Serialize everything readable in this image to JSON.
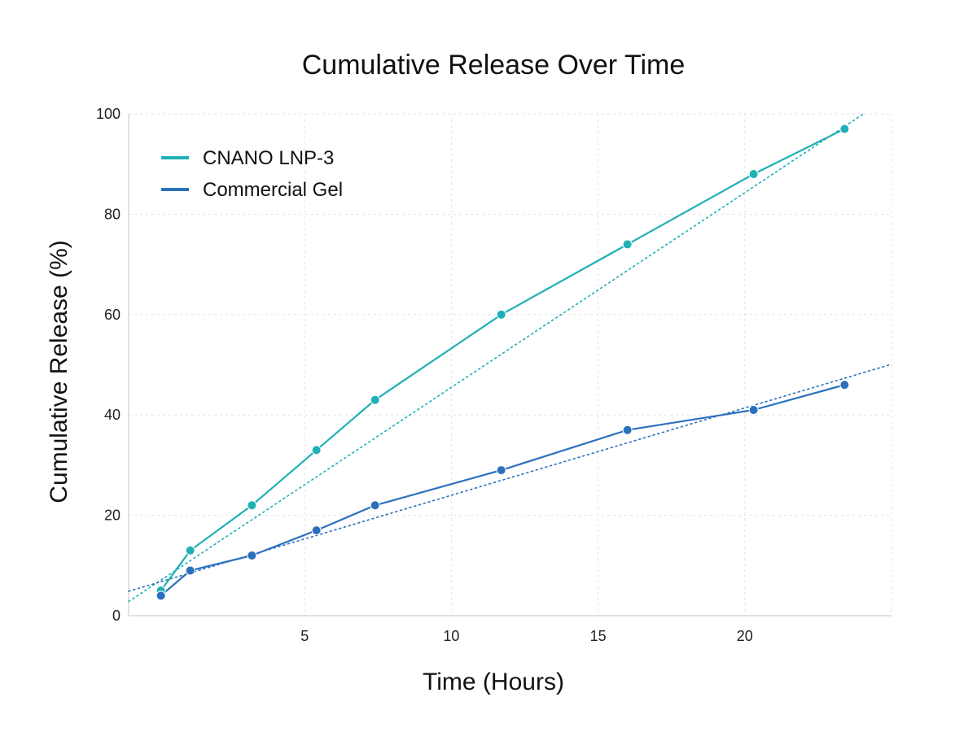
{
  "chart_data": {
    "type": "line",
    "title": "Cumulative Release Over Time",
    "xlabel": "Time (Hours)",
    "ylabel": "Cumulative Release (%)",
    "xlim": [
      -1,
      25
    ],
    "ylim": [
      0,
      100
    ],
    "x_ticks": [
      5,
      10,
      15,
      20
    ],
    "y_ticks": [
      0,
      20,
      40,
      60,
      80,
      100
    ],
    "grid": true,
    "legend_position": "top-left",
    "series": [
      {
        "name": "CNANO LNP-3",
        "color": "#1fb0b6",
        "x": [
          0.1,
          1.1,
          3.2,
          5.4,
          7.4,
          11.7,
          16.0,
          20.3,
          23.4
        ],
        "y": [
          5,
          13,
          22,
          33,
          43,
          60,
          74,
          88,
          97
        ],
        "trendline": {
          "style": "dotted",
          "slope": 3.88,
          "intercept": 6.7
        }
      },
      {
        "name": "Commercial Gel",
        "color": "#2b70bd",
        "x": [
          0.1,
          1.1,
          3.2,
          5.4,
          7.4,
          11.7,
          16.0,
          20.3,
          23.4
        ],
        "y": [
          4,
          9,
          12,
          17,
          22,
          29,
          37,
          41,
          46
        ],
        "trendline": {
          "style": "dotted",
          "slope": 1.74,
          "intercept": 6.6
        }
      }
    ]
  }
}
